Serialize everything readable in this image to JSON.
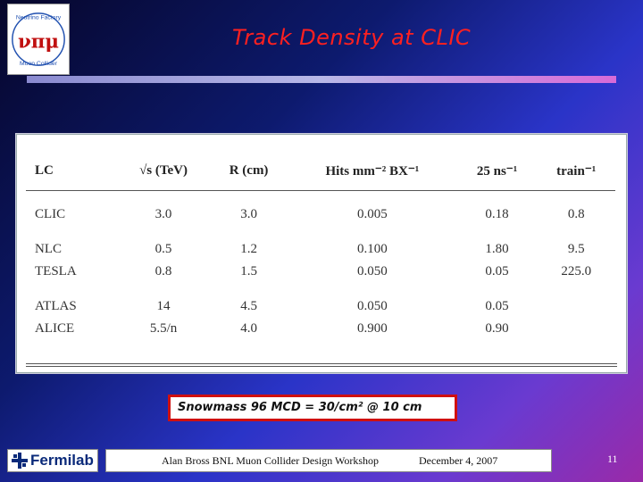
{
  "logo": {
    "top_text": "Neutrino Factory",
    "bottom_text": "Muon Collider",
    "symbols": "νπμ"
  },
  "title": "Track Density at CLIC",
  "table": {
    "headers": [
      "LC",
      "√s (TeV)",
      "R (cm)",
      "Hits mm⁻² BX⁻¹",
      "25 ns⁻¹",
      "train⁻¹"
    ],
    "rows": [
      [
        "CLIC",
        "3.0",
        "3.0",
        "0.005",
        "0.18",
        "0.8"
      ],
      [
        "NLC",
        "0.5",
        "1.2",
        "0.100",
        "1.80",
        "9.5"
      ],
      [
        "TESLA",
        "0.8",
        "1.5",
        "0.050",
        "0.05",
        "225.0"
      ],
      [
        "ATLAS",
        "14",
        "4.5",
        "0.050",
        "0.05",
        ""
      ],
      [
        "ALICE",
        "5.5/n",
        "4.0",
        "0.900",
        "0.90",
        ""
      ]
    ]
  },
  "note": "Snowmass 96 MCD = 30/cm² @ 10 cm",
  "footer": {
    "logo_text": "Fermilab",
    "credit": "Alan Bross   BNL  Muon Collider Design Workshop",
    "date": "December 4, 2007",
    "page": "11"
  },
  "colors": {
    "title": "#ff2020",
    "note_border": "#d01010",
    "fermilab_text": "#0a2a7a"
  }
}
